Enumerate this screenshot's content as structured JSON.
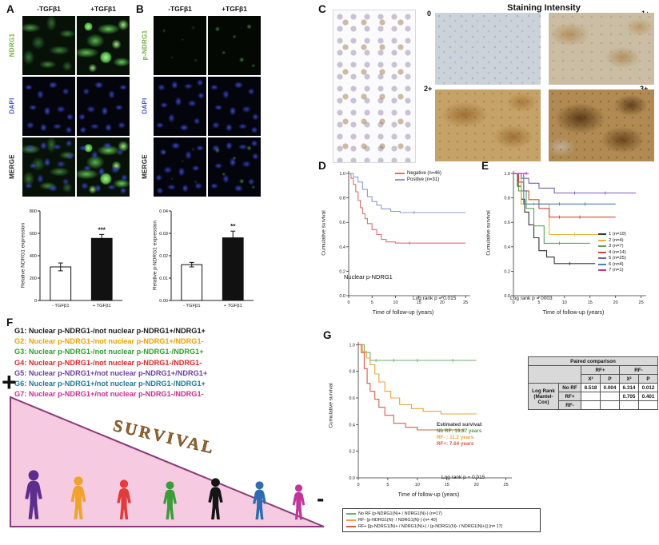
{
  "panelA": {
    "label": "A",
    "col_headers": [
      "-TGFβ1",
      "+TGFβ1"
    ],
    "rows": [
      {
        "text": "NDRG1",
        "color": "#6fae3f"
      },
      {
        "text": "DAPI",
        "color": "#4956c9"
      },
      {
        "text": "MERGE",
        "color": "#222222"
      }
    ]
  },
  "panelB": {
    "label": "B",
    "col_headers": [
      "-TGFβ1",
      "+TGFβ1"
    ],
    "rows": [
      {
        "text": "p-NDRG1",
        "color": "#6fae3f"
      },
      {
        "text": "DAPI",
        "color": "#4956c9"
      },
      {
        "text": "MERGE",
        "color": "#222222"
      }
    ]
  },
  "panelC": {
    "label": "C",
    "title": "Staining Intensity",
    "intensity_labels": [
      "0",
      "1+",
      "2+",
      "3+"
    ]
  },
  "panelD": {
    "label": "D",
    "ylabel": "Cumulative survival",
    "xlabel": "Time of follow-up (years)",
    "annotation": "Nuclear p-NDRG1",
    "logrank": "Log rank p = 0.015"
  },
  "panelE": {
    "label": "E",
    "ylabel": "Cumulative survival",
    "xlabel": "Time of follow-up (years)",
    "logrank": "Log rank p = 0003"
  },
  "panelF": {
    "label": "F",
    "groups": [
      {
        "text": "G1: Nuclear p-NDRG1-/not nuclear p-NDRG1+/NDRG1+",
        "color": "#1a1a1a"
      },
      {
        "text": "G2: Nuclear p-NDRG1-/not nuclear p-NDRG1+/NDRG1-",
        "color": "#f0a100"
      },
      {
        "text": "G3: Nuclear p-NDRG1-/not nuclear p-NDRG1-/NDRG1+",
        "color": "#2f9e2f"
      },
      {
        "text": "G4: Nuclear p-NDRG1-/not nuclear p-NDRG1-/NDRG1-",
        "color": "#e02525"
      },
      {
        "text": "G5: Nuclear p-NDRG1+/not nuclear p-NDRG1+/NDRG1+",
        "color": "#6a3fa0"
      },
      {
        "text": "G6: Nuclear p-NDRG1+/not nuclear p-NDRG1-/NDRG1+",
        "color": "#1f7a99"
      },
      {
        "text": "G7: Nuclear p-NDRG1+/not nuclear p-NDRG1-/NDRG1-",
        "color": "#cc2f8e"
      }
    ],
    "plus": "+",
    "minus": "-",
    "survival_text": "SURVIVAL",
    "people": [
      {
        "color": "#5e2d8e"
      },
      {
        "color": "#f0a32a"
      },
      {
        "color": "#e23b3b"
      },
      {
        "color": "#3a9d3a"
      },
      {
        "color": "#151515"
      },
      {
        "color": "#2e6db4"
      },
      {
        "color": "#c2369b"
      }
    ]
  },
  "panelG": {
    "label": "G",
    "ylabel": "Cumulative survival",
    "xlabel": "Time of follow-up (years)",
    "estimated": [
      "Estimated survival:",
      "No RF: 19.87 years",
      "RF- : 11.2 years",
      "RF+: 7.64 years"
    ],
    "estimated_colors": [
      "#3d3d3d",
      "#4a9e4a",
      "#e8a33d",
      "#d95b4a"
    ],
    "logrank": "Log rank p = 0.015",
    "legend": [
      {
        "text": "No RF (p-NDRG1(N)+ / NDRG1(N)-) (n=17)",
        "color": "#69b06b"
      },
      {
        "text": "RF- (p-NDRG1(N)- / NDRG1(N)-) (n= 40)",
        "color": "#e8a33d"
      },
      {
        "text": "RF+ [(p-NDRG1(N)+ / NDRG1(N)+) / (p-NDRG1(N)- / NDRG1(N)+)] (n= 17)",
        "color": "#d95b4a"
      }
    ]
  },
  "table": {
    "title": "Paired comparison",
    "col_groups": [
      "RF+",
      "RF-"
    ],
    "stat": "X²",
    "p": "P",
    "row_group": "Log Rank\n(Mantel-Cox)",
    "rows": [
      {
        "label": "No RF",
        "values": [
          "8.518",
          "0.004",
          "6.314",
          "0.012"
        ]
      },
      {
        "label": "RF+",
        "values": [
          "",
          "",
          "0.705",
          "0.401"
        ]
      },
      {
        "label": "RF-",
        "values": [
          "",
          "",
          "",
          ""
        ]
      }
    ]
  },
  "chart_data": [
    {
      "id": "barA",
      "type": "bar",
      "categories": [
        "- TGFβ1",
        "+ TGFβ1"
      ],
      "values": [
        300,
        555
      ],
      "errors": [
        35,
        35
      ],
      "bar_colors": [
        "#ffffff",
        "#111111"
      ],
      "ylim": [
        0,
        800
      ],
      "yticks": [
        0,
        200,
        400,
        600,
        800
      ],
      "ytick_labels": [
        "0",
        "200",
        "400",
        "600",
        "800"
      ],
      "ylabel": "Relative NDRG1 expression",
      "significance": "***",
      "sig_bar_index": 1
    },
    {
      "id": "barB",
      "type": "bar",
      "categories": [
        "- TGFβ1",
        "+ TGFβ1"
      ],
      "values": [
        0.016,
        0.028
      ],
      "errors": [
        0.001,
        0.003
      ],
      "bar_colors": [
        "#ffffff",
        "#111111"
      ],
      "ylim": [
        0,
        0.04
      ],
      "yticks": [
        0,
        0.01,
        0.02,
        0.03,
        0.04
      ],
      "ytick_labels": [
        "0.00",
        "0.01",
        "0.02",
        "0.03",
        "0.04"
      ],
      "ylabel": "Relative p-NDRG1 expression",
      "significance": "**",
      "sig_bar_index": 1
    },
    {
      "id": "kmD",
      "type": "km",
      "xlim": [
        0,
        26
      ],
      "ylim": [
        0,
        1.02
      ],
      "xticks": [
        0,
        5,
        10,
        15,
        20,
        25
      ],
      "xtick_labels": [
        "0",
        "5",
        "10",
        "15",
        "20",
        "25"
      ],
      "yticks": [
        0,
        0.2,
        0.4,
        0.6,
        0.8,
        1.0
      ],
      "ytick_labels": [
        "0.0",
        "0.2",
        "0.4",
        "0.6",
        "0.8",
        "1.0"
      ],
      "series": [
        {
          "name": "Negative (n=46)",
          "color": "#e07070",
          "points": [
            [
              0,
              1
            ],
            [
              0.5,
              0.96
            ],
            [
              1,
              0.91
            ],
            [
              1.5,
              0.85
            ],
            [
              2,
              0.78
            ],
            [
              2.5,
              0.72
            ],
            [
              3,
              0.67
            ],
            [
              3.5,
              0.63
            ],
            [
              4,
              0.59
            ],
            [
              5,
              0.54
            ],
            [
              6,
              0.5
            ],
            [
              7,
              0.46
            ],
            [
              8,
              0.44
            ],
            [
              10,
              0.43
            ],
            [
              13,
              0.43
            ],
            [
              25,
              0.43
            ]
          ]
        },
        {
          "name": "Positive (n=31)",
          "color": "#8b9dc9",
          "points": [
            [
              0,
              1
            ],
            [
              1,
              0.97
            ],
            [
              2,
              0.93
            ],
            [
              3,
              0.87
            ],
            [
              4,
              0.81
            ],
            [
              5,
              0.77
            ],
            [
              6,
              0.74
            ],
            [
              7,
              0.71
            ],
            [
              9,
              0.69
            ],
            [
              11,
              0.68
            ],
            [
              14,
              0.68
            ],
            [
              25,
              0.68
            ]
          ]
        }
      ]
    },
    {
      "id": "kmE",
      "type": "km",
      "xlim": [
        0,
        26
      ],
      "ylim": [
        0,
        1.02
      ],
      "xticks": [
        0,
        5,
        10,
        15,
        20,
        25
      ],
      "xtick_labels": [
        "0",
        "5",
        "10",
        "15",
        "20",
        "25"
      ],
      "yticks": [
        0,
        0.2,
        0.4,
        0.6,
        0.8,
        1.0
      ],
      "ytick_labels": [
        "0.0",
        "0.2",
        "0.4",
        "0.6",
        "0.8",
        "1.0"
      ],
      "series": [
        {
          "name": "1 (n=19)",
          "color": "#333333",
          "points": [
            [
              0,
              1
            ],
            [
              0.8,
              0.895
            ],
            [
              1.5,
              0.789
            ],
            [
              2.2,
              0.684
            ],
            [
              3,
              0.579
            ],
            [
              4,
              0.474
            ],
            [
              5,
              0.368
            ],
            [
              6.5,
              0.316
            ],
            [
              8,
              0.263
            ],
            [
              11,
              0.263
            ],
            [
              16,
              0.263
            ]
          ]
        },
        {
          "name": "2 (n=4)",
          "color": "#e8b33a",
          "points": [
            [
              0,
              1
            ],
            [
              1.5,
              0.75
            ],
            [
              4,
              0.75
            ],
            [
              7,
              0.5
            ],
            [
              12,
              0.5
            ],
            [
              18,
              0.5
            ]
          ]
        },
        {
          "name": "3 (n=7)",
          "color": "#58a55c",
          "points": [
            [
              0,
              1
            ],
            [
              1,
              0.857
            ],
            [
              2.5,
              0.714
            ],
            [
              4,
              0.571
            ],
            [
              6,
              0.429
            ],
            [
              9,
              0.429
            ],
            [
              15,
              0.429
            ]
          ]
        },
        {
          "name": "4 (n=14)",
          "color": "#cc4a3a",
          "points": [
            [
              0,
              1
            ],
            [
              1,
              0.929
            ],
            [
              2,
              0.857
            ],
            [
              3,
              0.786
            ],
            [
              5,
              0.714
            ],
            [
              7,
              0.643
            ],
            [
              9,
              0.643
            ],
            [
              13,
              0.643
            ],
            [
              20,
              0.643
            ]
          ]
        },
        {
          "name": "5 (n=25)",
          "color": "#7a5fb5",
          "points": [
            [
              0,
              1
            ],
            [
              1.5,
              0.96
            ],
            [
              3,
              0.92
            ],
            [
              5,
              0.88
            ],
            [
              8,
              0.84
            ],
            [
              12,
              0.84
            ],
            [
              18,
              0.84
            ],
            [
              24,
              0.84
            ]
          ]
        },
        {
          "name": "6 (n=4)",
          "color": "#4a7fc1",
          "points": [
            [
              0,
              1
            ],
            [
              2,
              0.75
            ],
            [
              5,
              0.75
            ],
            [
              9,
              0.75
            ],
            [
              14,
              0.75
            ],
            [
              20,
              0.75
            ]
          ]
        },
        {
          "name": "7 (n=1)",
          "color": "#c2369b",
          "points": [
            [
              0,
              1
            ],
            [
              2.5,
              1
            ],
            [
              3,
              1
            ]
          ]
        }
      ]
    },
    {
      "id": "kmG",
      "type": "km",
      "xlim": [
        0,
        26
      ],
      "ylim": [
        0,
        1.02
      ],
      "xticks": [
        0,
        5,
        10,
        15,
        20,
        25
      ],
      "xtick_labels": [
        "0",
        "5",
        "10",
        "15",
        "20",
        "25"
      ],
      "yticks": [
        0,
        0.2,
        0.4,
        0.6,
        0.8,
        1.0
      ],
      "ytick_labels": [
        "0.0",
        "0.2",
        "0.4",
        "0.6",
        "0.8",
        "1.0"
      ],
      "series": [
        {
          "name": "No RF",
          "color": "#69b06b",
          "points": [
            [
              0,
              1
            ],
            [
              1,
              0.941
            ],
            [
              2,
              0.882
            ],
            [
              3,
              0.882
            ],
            [
              6,
              0.882
            ],
            [
              10,
              0.882
            ],
            [
              16,
              0.882
            ],
            [
              20,
              0.882
            ]
          ]
        },
        {
          "name": "RF-",
          "color": "#e8a33d",
          "points": [
            [
              0,
              1
            ],
            [
              0.7,
              0.95
            ],
            [
              1.4,
              0.9
            ],
            [
              2,
              0.85
            ],
            [
              2.8,
              0.78
            ],
            [
              3.5,
              0.72
            ],
            [
              4.5,
              0.65
            ],
            [
              5.5,
              0.6
            ],
            [
              7,
              0.55
            ],
            [
              9,
              0.52
            ],
            [
              11,
              0.5
            ],
            [
              14,
              0.48
            ],
            [
              20,
              0.48
            ]
          ]
        },
        {
          "name": "RF+",
          "color": "#d95b4a",
          "points": [
            [
              0,
              1
            ],
            [
              0.5,
              0.94
            ],
            [
              1,
              0.82
            ],
            [
              1.5,
              0.71
            ],
            [
              2,
              0.65
            ],
            [
              2.8,
              0.59
            ],
            [
              3.5,
              0.53
            ],
            [
              4.5,
              0.47
            ],
            [
              6,
              0.41
            ],
            [
              8,
              0.38
            ],
            [
              10,
              0.36
            ],
            [
              14,
              0.36
            ],
            [
              18,
              0.36
            ]
          ]
        }
      ]
    }
  ]
}
